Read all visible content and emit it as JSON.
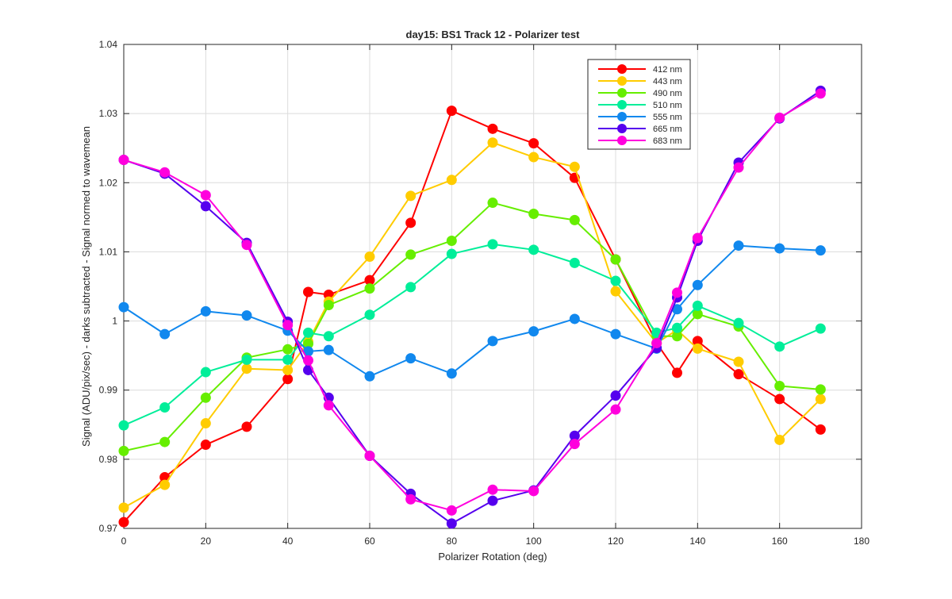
{
  "chart_data": {
    "type": "line",
    "title": "day15: BS1  Track 12 - Polarizer test",
    "xlabel": "Polarizer Rotation (deg)",
    "ylabel": "Signal (ADU/pix/sec) - darks subtracted - Signal normed to wavemean",
    "xlim": [
      0,
      180
    ],
    "ylim": [
      0.97,
      1.04
    ],
    "xticks": [
      0,
      20,
      40,
      60,
      80,
      100,
      120,
      140,
      160,
      180
    ],
    "yticks": [
      0.97,
      0.98,
      0.99,
      1.0,
      1.01,
      1.02,
      1.03,
      1.04
    ],
    "xtick_labels": [
      "0",
      "20",
      "40",
      "60",
      "80",
      "100",
      "120",
      "140",
      "160",
      "180"
    ],
    "ytick_labels": [
      "0.97",
      "0.98",
      "0.99",
      "1",
      "1.01",
      "1.02",
      "1.03",
      "1.04"
    ],
    "grid": true,
    "legend_position": "top-right",
    "x": [
      0,
      10,
      20,
      30,
      40,
      45,
      50,
      60,
      70,
      80,
      90,
      100,
      110,
      120,
      130,
      135,
      140,
      150,
      160,
      170
    ],
    "series": [
      {
        "name": "412 nm",
        "color": "#ff0000",
        "values": [
          0.9709,
          0.9774,
          0.9821,
          0.9847,
          0.9916,
          1.0042,
          1.0038,
          1.0059,
          1.0142,
          1.0304,
          1.0278,
          1.0257,
          1.0207,
          1.0089,
          0.9968,
          0.9925,
          0.9971,
          0.9923,
          0.9887,
          0.9843
        ]
      },
      {
        "name": "443 nm",
        "color": "#ffcc00",
        "values": [
          0.973,
          0.9763,
          0.9852,
          0.9931,
          0.9929,
          0.997,
          1.0028,
          1.0093,
          1.0181,
          1.0204,
          1.0258,
          1.0237,
          1.0223,
          1.0043,
          0.9968,
          0.9987,
          0.996,
          0.9941,
          0.9828,
          0.9887
        ]
      },
      {
        "name": "490 nm",
        "color": "#66ee00",
        "values": [
          0.9812,
          0.9825,
          0.9889,
          0.9947,
          0.9959,
          0.9967,
          1.0023,
          1.0047,
          1.0096,
          1.0116,
          1.0171,
          1.0155,
          1.0146,
          1.0089,
          0.9978,
          0.9978,
          1.001,
          0.9992,
          0.9906,
          0.9901
        ]
      },
      {
        "name": "510 nm",
        "color": "#00ee99",
        "values": [
          0.9849,
          0.9875,
          0.9926,
          0.9944,
          0.9944,
          0.9983,
          0.9978,
          1.0009,
          1.0049,
          1.0097,
          1.0111,
          1.0103,
          1.0084,
          1.0058,
          0.9983,
          0.999,
          1.0022,
          0.9997,
          0.9963,
          0.9989
        ]
      },
      {
        "name": "555 nm",
        "color": "#1188ee",
        "values": [
          1.002,
          0.9981,
          1.0014,
          1.0008,
          0.9986,
          0.9956,
          0.9958,
          0.992,
          0.9946,
          0.9924,
          0.9971,
          0.9985,
          1.0003,
          0.9981,
          0.996,
          1.0017,
          1.0052,
          1.0109,
          1.0105,
          1.0102
        ]
      },
      {
        "name": "665 nm",
        "color": "#5500ee",
        "values": [
          1.0233,
          1.0213,
          1.0166,
          1.0113,
          0.9999,
          0.9929,
          0.9889,
          0.9805,
          0.975,
          0.9707,
          0.974,
          0.9755,
          0.9834,
          0.9892,
          0.9961,
          1.0034,
          1.0116,
          1.0229,
          1.0293,
          1.0333
        ]
      },
      {
        "name": "683 nm",
        "color": "#ff00dd",
        "values": [
          1.0233,
          1.0215,
          1.0182,
          1.011,
          0.9994,
          0.9943,
          0.9878,
          0.9805,
          0.9742,
          0.9726,
          0.9756,
          0.9754,
          0.9822,
          0.9872,
          0.9968,
          1.0041,
          1.012,
          1.0222,
          1.0294,
          1.0329
        ]
      }
    ]
  }
}
